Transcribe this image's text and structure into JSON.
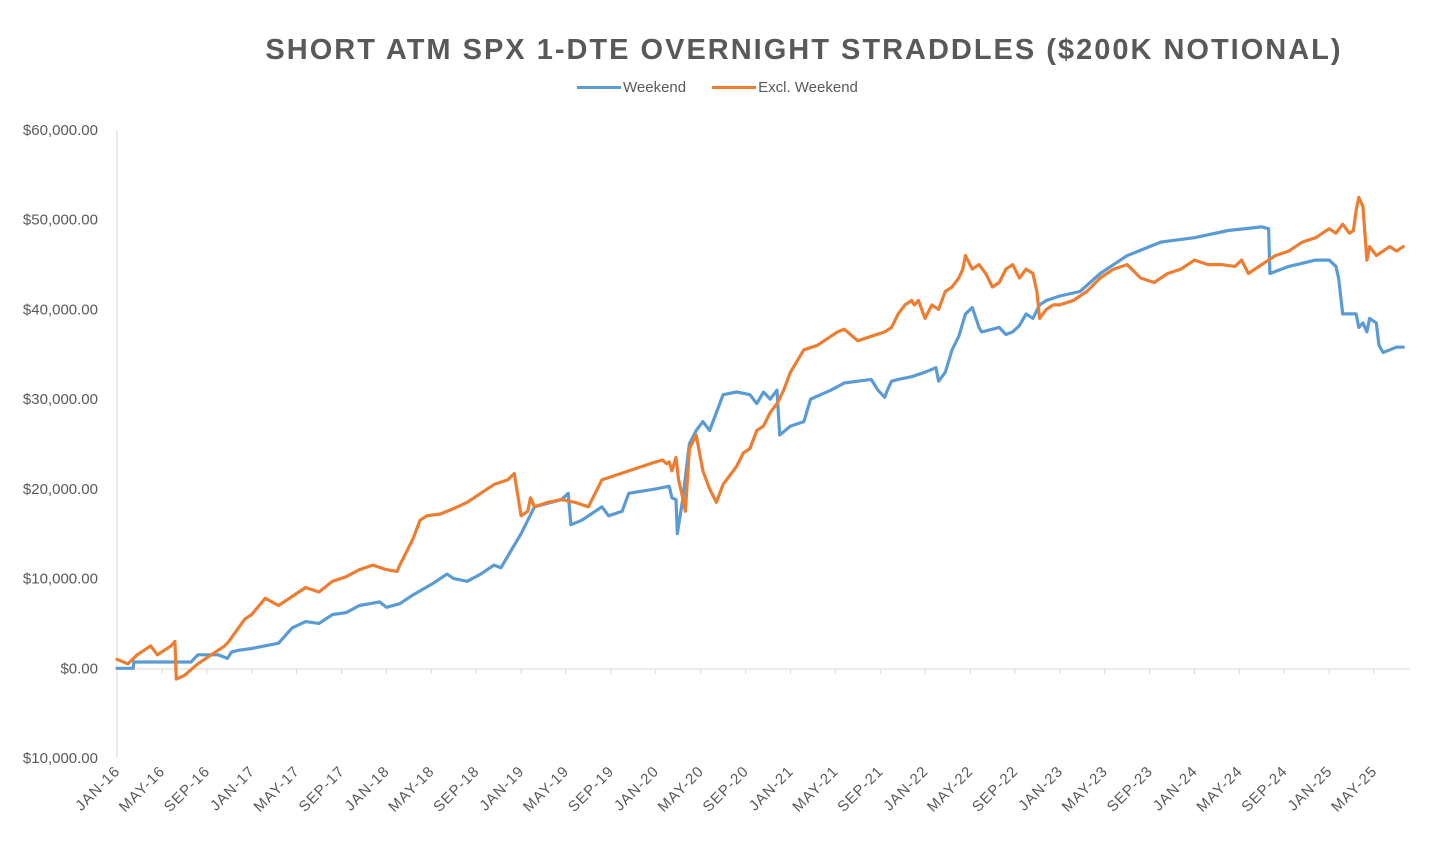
{
  "chart_data": {
    "type": "line",
    "title": "SHORT ATM SPX 1-DTE OVERNIGHT STRADDLES ($200K NOTIONAL)",
    "xlabel": "",
    "ylabel": "",
    "ylim": [
      -10000,
      60000
    ],
    "y_ticks": [
      60000,
      50000,
      40000,
      30000,
      20000,
      10000,
      0,
      -10000
    ],
    "y_tick_labels": [
      "$60,000.00",
      "$50,000.00",
      "$40,000.00",
      "$30,000.00",
      "$20,000.00",
      "$10,000.00",
      "$0.00",
      "$10,000.00"
    ],
    "y_tick_colors": [
      "#595959",
      "#595959",
      "#595959",
      "#595959",
      "#595959",
      "#595959",
      "#595959",
      "#ff0000"
    ],
    "x_range": [
      2016.0,
      2025.6
    ],
    "x_ticks": [
      2016.0,
      2016.333,
      2016.667,
      2017.0,
      2017.333,
      2017.667,
      2018.0,
      2018.333,
      2018.667,
      2019.0,
      2019.333,
      2019.667,
      2020.0,
      2020.333,
      2020.667,
      2021.0,
      2021.333,
      2021.667,
      2022.0,
      2022.333,
      2022.667,
      2023.0,
      2023.333,
      2023.667,
      2024.0,
      2024.333,
      2024.667,
      2025.0,
      2025.333
    ],
    "x_tick_labels": [
      "JAN-16",
      "MAY-16",
      "SEP-16",
      "JAN-17",
      "MAY-17",
      "SEP-17",
      "JAN-18",
      "MAY-18",
      "SEP-18",
      "JAN-19",
      "MAY-19",
      "SEP-19",
      "JAN-20",
      "MAY-20",
      "SEP-20",
      "JAN-21",
      "MAY-21",
      "SEP-21",
      "JAN-22",
      "MAY-22",
      "SEP-22",
      "JAN-23",
      "MAY-23",
      "SEP-23",
      "JAN-24",
      "MAY-24",
      "SEP-24",
      "JAN-25",
      "MAY-25"
    ],
    "legend": {
      "position": "top-center"
    },
    "series": [
      {
        "name": "Weekend",
        "color": "#5b9bd5",
        "x": [
          2016.0,
          2016.12,
          2016.125,
          2016.55,
          2016.6,
          2016.75,
          2016.82,
          2016.85,
          2016.9,
          2017.0,
          2017.2,
          2017.3,
          2017.4,
          2017.5,
          2017.6,
          2017.7,
          2017.8,
          2017.95,
          2018.0,
          2018.1,
          2018.2,
          2018.35,
          2018.45,
          2018.5,
          2018.6,
          2018.7,
          2018.8,
          2018.85,
          2019.0,
          2019.1,
          2019.3,
          2019.35,
          2019.37,
          2019.45,
          2019.6,
          2019.65,
          2019.75,
          2019.8,
          2020.0,
          2020.1,
          2020.12,
          2020.15,
          2020.16,
          2020.2,
          2020.25,
          2020.3,
          2020.35,
          2020.4,
          2020.45,
          2020.5,
          2020.6,
          2020.7,
          2020.75,
          2020.8,
          2020.85,
          2020.9,
          2020.92,
          2021.0,
          2021.1,
          2021.15,
          2021.3,
          2021.4,
          2021.5,
          2021.6,
          2021.65,
          2021.7,
          2021.72,
          2021.75,
          2021.8,
          2021.9,
          2022.0,
          2022.08,
          2022.1,
          2022.15,
          2022.2,
          2022.25,
          2022.3,
          2022.35,
          2022.4,
          2022.42,
          2022.5,
          2022.55,
          2022.6,
          2022.65,
          2022.7,
          2022.75,
          2022.8,
          2022.85,
          2022.9,
          2023.0,
          2023.15,
          2023.3,
          2023.5,
          2023.75,
          2024.0,
          2024.25,
          2024.5,
          2024.55,
          2024.56,
          2024.7,
          2024.9,
          2025.0,
          2025.05,
          2025.07,
          2025.1,
          2025.2,
          2025.22,
          2025.25,
          2025.28,
          2025.3,
          2025.35,
          2025.37,
          2025.4,
          2025.45,
          2025.5,
          2025.55
        ],
        "values": [
          0,
          0,
          700,
          700,
          1500,
          1500,
          1100,
          1800,
          2000,
          2200,
          2800,
          4500,
          5200,
          5000,
          6000,
          6200,
          7000,
          7400,
          6800,
          7200,
          8200,
          9500,
          10500,
          10000,
          9700,
          10500,
          11500,
          11200,
          15000,
          18000,
          18800,
          19500,
          16000,
          16500,
          18000,
          17000,
          17500,
          19500,
          20000,
          20300,
          19000,
          18800,
          15000,
          18800,
          25000,
          26500,
          27500,
          26500,
          28500,
          30500,
          30800,
          30500,
          29500,
          30800,
          30000,
          31000,
          26000,
          27000,
          27500,
          30000,
          31000,
          31800,
          32000,
          32200,
          31000,
          30200,
          31000,
          32000,
          32200,
          32500,
          33000,
          33500,
          32000,
          33000,
          35500,
          37000,
          39500,
          40200,
          38000,
          37500,
          37800,
          38000,
          37200,
          37500,
          38200,
          39500,
          39000,
          40500,
          41000,
          41500,
          42000,
          44000,
          46000,
          47500,
          48000,
          48800,
          49200,
          49000,
          44000,
          44800,
          45500,
          45500,
          44800,
          43500,
          39500,
          39500,
          38000,
          38500,
          37500,
          39000,
          38500,
          36000,
          35200,
          35500,
          35800,
          35800
        ]
      },
      {
        "name": "Excl. Weekend",
        "color": "#ed7d31",
        "x": [
          2016.0,
          2016.08,
          2016.15,
          2016.25,
          2016.3,
          2016.4,
          2016.43,
          2016.44,
          2016.5,
          2016.6,
          2016.7,
          2016.8,
          2016.83,
          2016.95,
          2017.0,
          2017.1,
          2017.2,
          2017.3,
          2017.4,
          2017.5,
          2017.6,
          2017.7,
          2017.8,
          2017.9,
          2018.0,
          2018.08,
          2018.1,
          2018.2,
          2018.25,
          2018.3,
          2018.4,
          2018.5,
          2018.6,
          2018.7,
          2018.8,
          2018.9,
          2018.95,
          2019.0,
          2019.05,
          2019.07,
          2019.1,
          2019.2,
          2019.3,
          2019.4,
          2019.5,
          2019.6,
          2019.7,
          2019.8,
          2019.9,
          2020.0,
          2020.05,
          2020.08,
          2020.1,
          2020.12,
          2020.15,
          2020.17,
          2020.2,
          2020.22,
          2020.25,
          2020.3,
          2020.35,
          2020.4,
          2020.45,
          2020.5,
          2020.55,
          2020.6,
          2020.65,
          2020.7,
          2020.75,
          2020.8,
          2020.85,
          2020.9,
          2020.95,
          2021.0,
          2021.1,
          2021.2,
          2021.3,
          2021.35,
          2021.4,
          2021.5,
          2021.6,
          2021.7,
          2021.75,
          2021.8,
          2021.85,
          2021.9,
          2021.92,
          2021.95,
          2022.0,
          2022.05,
          2022.1,
          2022.15,
          2022.2,
          2022.25,
          2022.28,
          2022.3,
          2022.35,
          2022.4,
          2022.45,
          2022.5,
          2022.55,
          2022.6,
          2022.65,
          2022.7,
          2022.75,
          2022.8,
          2022.83,
          2022.85,
          2022.9,
          2022.95,
          2023.0,
          2023.1,
          2023.2,
          2023.3,
          2023.4,
          2023.5,
          2023.6,
          2023.7,
          2023.8,
          2023.9,
          2024.0,
          2024.1,
          2024.2,
          2024.3,
          2024.35,
          2024.4,
          2024.5,
          2024.6,
          2024.7,
          2024.8,
          2024.9,
          2025.0,
          2025.05,
          2025.1,
          2025.15,
          2025.18,
          2025.2,
          2025.22,
          2025.25,
          2025.28,
          2025.3,
          2025.35,
          2025.4,
          2025.45,
          2025.5,
          2025.55
        ],
        "values": [
          1000,
          500,
          1500,
          2500,
          1500,
          2500,
          3000,
          -1200,
          -800,
          500,
          1500,
          2500,
          3000,
          5500,
          6000,
          7800,
          7000,
          8000,
          9000,
          8500,
          9700,
          10200,
          11000,
          11500,
          11000,
          10800,
          11500,
          14500,
          16500,
          17000,
          17200,
          17800,
          18500,
          19500,
          20500,
          21000,
          21700,
          17000,
          17500,
          19000,
          18000,
          18500,
          18800,
          18500,
          18000,
          21000,
          21500,
          22000,
          22500,
          23000,
          23200,
          22800,
          23000,
          22000,
          23500,
          21000,
          19000,
          17500,
          24500,
          26000,
          22000,
          20000,
          18500,
          20500,
          21500,
          22500,
          24000,
          24500,
          26500,
          27000,
          28500,
          29500,
          31000,
          33000,
          35500,
          36000,
          37000,
          37500,
          37800,
          36500,
          37000,
          37500,
          38000,
          39500,
          40500,
          41000,
          40500,
          41000,
          39000,
          40500,
          40000,
          42000,
          42500,
          43500,
          44500,
          46000,
          44500,
          45000,
          44000,
          42500,
          43000,
          44500,
          45000,
          43500,
          44500,
          44000,
          42000,
          39000,
          40000,
          40500,
          40500,
          41000,
          42000,
          43500,
          44500,
          45000,
          43500,
          43000,
          44000,
          44500,
          45500,
          45000,
          45000,
          44800,
          45500,
          44000,
          45000,
          46000,
          46500,
          47500,
          48000,
          49000,
          48500,
          49500,
          48500,
          48800,
          51000,
          52500,
          51500,
          45500,
          47000,
          46000,
          46500,
          47000,
          46500,
          47000
        ]
      }
    ]
  }
}
